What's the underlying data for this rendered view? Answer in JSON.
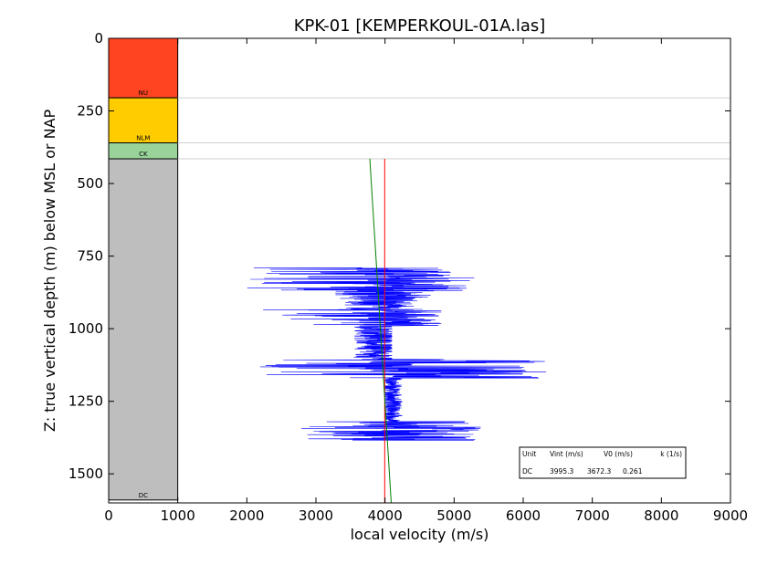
{
  "chart_data": {
    "type": "line",
    "title": "KPK-01 [KEMPERKOUL-01A.las]",
    "xlabel": "local velocity (m/s)",
    "ylabel": "Z: true vertical depth (m) below MSL or NAP",
    "xlim": [
      0,
      9000
    ],
    "ylim": [
      0,
      1600
    ],
    "y_inverted": true,
    "x_ticks": [
      0,
      1000,
      2000,
      3000,
      4000,
      5000,
      6000,
      7000,
      8000,
      9000
    ],
    "y_ticks": [
      0,
      250,
      500,
      750,
      1000,
      1250,
      1500
    ],
    "grid": false,
    "units": [
      {
        "name": "NU",
        "top": 0,
        "base": 205,
        "color": "#ff4422"
      },
      {
        "name": "NLM",
        "top": 205,
        "base": 360,
        "color": "#ffcc00"
      },
      {
        "name": "CK",
        "top": 360,
        "base": 415,
        "color": "#99d39a"
      },
      {
        "name": "DC",
        "top": 415,
        "base": 1590,
        "color": "#bebebe"
      }
    ],
    "unit_column_xlim": [
      0,
      1000
    ],
    "reference_lines": [
      {
        "series": "Vint",
        "color": "#ff0000",
        "x_start": 3995.3,
        "x_end": 3995.3,
        "z_start": 415,
        "z_end": 1600
      },
      {
        "series": "V0 + k*z",
        "color": "#008000",
        "x_start": 3780,
        "x_end": 4090,
        "z_start": 415,
        "z_end": 1600
      }
    ],
    "velocity_log": {
      "color": "#0000ff",
      "segments": [
        {
          "z_start": 790,
          "z_end": 870,
          "v_base": 4000,
          "v_min": 2000,
          "v_max": 5550
        },
        {
          "z_start": 870,
          "z_end": 935,
          "v_base": 3950,
          "v_min": 3250,
          "v_max": 4800
        },
        {
          "z_start": 935,
          "z_end": 990,
          "v_base": 4000,
          "v_min": 2150,
          "v_max": 5000
        },
        {
          "z_start": 990,
          "z_end": 1105,
          "v_base": 3900,
          "v_min": 3400,
          "v_max": 4100
        },
        {
          "z_start": 1105,
          "z_end": 1170,
          "v_base": 4000,
          "v_min": 2150,
          "v_max": 6750
        },
        {
          "z_start": 1170,
          "z_end": 1320,
          "v_base": 4100,
          "v_min": 4000,
          "v_max": 4300
        },
        {
          "z_start": 1320,
          "z_end": 1385,
          "v_base": 4000,
          "v_min": 2450,
          "v_max": 5650
        }
      ]
    },
    "table": {
      "headers": [
        "Unit",
        "Vint (m/s)",
        "V0 (m/s)",
        "k (1/s)"
      ],
      "rows": [
        [
          "DC",
          "3995.3",
          "3672.3",
          "0.261"
        ]
      ],
      "placement": "lower-right"
    }
  }
}
